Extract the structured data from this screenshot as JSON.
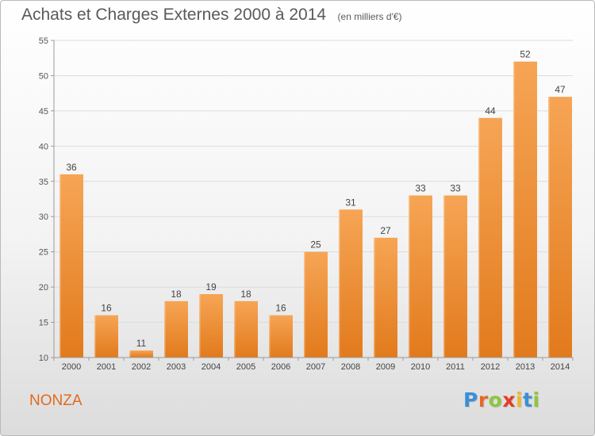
{
  "header": {
    "title": "Achats et Charges Externes 2000 à 2014",
    "subtitle": "(en milliers d'€)"
  },
  "footer": {
    "commune": "NONZA",
    "brand": {
      "letters": [
        "P",
        "r",
        "o",
        "x",
        "i",
        "t",
        "i"
      ],
      "colors": [
        "#3a8fd6",
        "#e8672a",
        "#8cc63f",
        "#e63a2a",
        "#f2b62a",
        "#3a8fd6",
        "#8cc63f"
      ]
    }
  },
  "colors": {
    "bar_light": "#f6a555",
    "bar_dark": "#e27a1c",
    "commune_text": "#e06a20"
  },
  "chart_data": {
    "type": "bar",
    "categories": [
      "2000",
      "2001",
      "2002",
      "2003",
      "2004",
      "2005",
      "2006",
      "2007",
      "2008",
      "2009",
      "2010",
      "2011",
      "2012",
      "2013",
      "2014"
    ],
    "values": [
      36,
      16,
      11,
      18,
      19,
      18,
      16,
      25,
      31,
      27,
      33,
      33,
      44,
      52,
      47
    ],
    "ylim": [
      10,
      55
    ],
    "yticks": [
      10,
      15,
      20,
      25,
      30,
      35,
      40,
      45,
      50,
      55
    ],
    "grid": true,
    "legend": "none"
  }
}
